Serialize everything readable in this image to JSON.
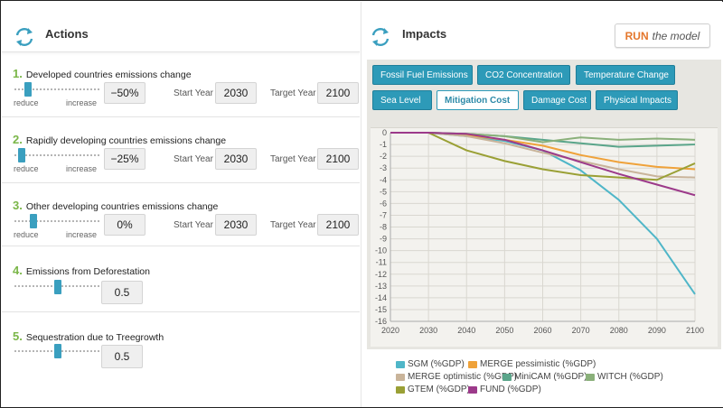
{
  "actions_panel": {
    "title": "Actions",
    "rows": [
      {
        "num": "1.",
        "title": "Developed countries emissions change",
        "value": "−50%",
        "start_label": "Start Year",
        "start_value": "2030",
        "target_label": "Target Year",
        "target_value": "2100",
        "reduce_label": "reduce",
        "increase_label": "increase",
        "slider_fraction": 0.13
      },
      {
        "num": "2.",
        "title": "Rapidly developing countries emissions change",
        "value": "−25%",
        "start_label": "Start Year",
        "start_value": "2030",
        "target_label": "Target Year",
        "target_value": "2100",
        "reduce_label": "reduce",
        "increase_label": "increase",
        "slider_fraction": 0.06
      },
      {
        "num": "3.",
        "title": "Other developing countries emissions change",
        "value": "0%",
        "start_label": "Start Year",
        "start_value": "2030",
        "target_label": "Target Year",
        "target_value": "2100",
        "reduce_label": "reduce",
        "increase_label": "increase",
        "slider_fraction": 0.19
      },
      {
        "num": "4.",
        "title": "Emissions from Deforestation",
        "value": "0.5",
        "slider_fraction": 0.48
      },
      {
        "num": "5.",
        "title": "Sequestration due to Treegrowth",
        "value": "0.5",
        "slider_fraction": 0.48
      }
    ]
  },
  "impacts_panel": {
    "title": "Impacts",
    "run_label_strong": "RUN",
    "run_label_rest": "the model",
    "tabs": [
      {
        "label": "Fossil Fuel Emissions",
        "active": false
      },
      {
        "label": "CO2 Concentration",
        "active": false
      },
      {
        "label": "Temperature Change",
        "active": false
      },
      {
        "label": "Sea Level",
        "active": false
      },
      {
        "label": "Mitigation Cost",
        "active": true
      },
      {
        "label": "Damage Cost",
        "active": false
      },
      {
        "label": "Physical Impacts",
        "active": false
      }
    ]
  },
  "chart_data": {
    "type": "line",
    "x": [
      2020,
      2030,
      2040,
      2050,
      2060,
      2070,
      2080,
      2090,
      2100
    ],
    "xlim": [
      2020,
      2100
    ],
    "ylim": [
      -16,
      0
    ],
    "yticks": [
      0,
      -1,
      -2,
      -3,
      -4,
      -5,
      -6,
      -7,
      -8,
      -9,
      -10,
      -11,
      -12,
      -13,
      -14,
      -15,
      -16
    ],
    "grid": true,
    "legend_position": "bottom",
    "series": [
      {
        "name": "SGM (%GDP)",
        "color": "#4fb6c8",
        "values": [
          0,
          0,
          -0.3,
          -0.7,
          -1.5,
          -3.2,
          -5.7,
          -9.0,
          -13.7
        ]
      },
      {
        "name": "MERGE pessimistic (%GDP)",
        "color": "#efa23a",
        "values": [
          0,
          0,
          -0.2,
          -0.6,
          -1.1,
          -1.9,
          -2.5,
          -2.9,
          -3.1
        ]
      },
      {
        "name": "MERGE optimistic (%GDP)",
        "color": "#c9b49a",
        "values": [
          0,
          0,
          -0.3,
          -0.9,
          -1.7,
          -2.4,
          -3.1,
          -3.7,
          -3.8
        ]
      },
      {
        "name": "MiniCAM (%GDP)",
        "color": "#5aa58a",
        "values": [
          0,
          0,
          -0.1,
          -0.3,
          -0.6,
          -0.9,
          -1.2,
          -1.1,
          -1.0
        ]
      },
      {
        "name": "WITCH (%GDP)",
        "color": "#8ab07a",
        "values": [
          0,
          0,
          -0.1,
          -0.3,
          -0.8,
          -0.4,
          -0.6,
          -0.5,
          -0.6
        ]
      },
      {
        "name": "GTEM (%GDP)",
        "color": "#9aa035",
        "values": [
          0,
          0,
          -1.5,
          -2.4,
          -3.1,
          -3.6,
          -3.8,
          -4.0,
          -2.6
        ]
      },
      {
        "name": "FUND (%GDP)",
        "color": "#9c3a8a",
        "values": [
          0,
          0,
          -0.1,
          -0.6,
          -1.5,
          -2.5,
          -3.5,
          -4.4,
          -5.3
        ]
      }
    ]
  }
}
